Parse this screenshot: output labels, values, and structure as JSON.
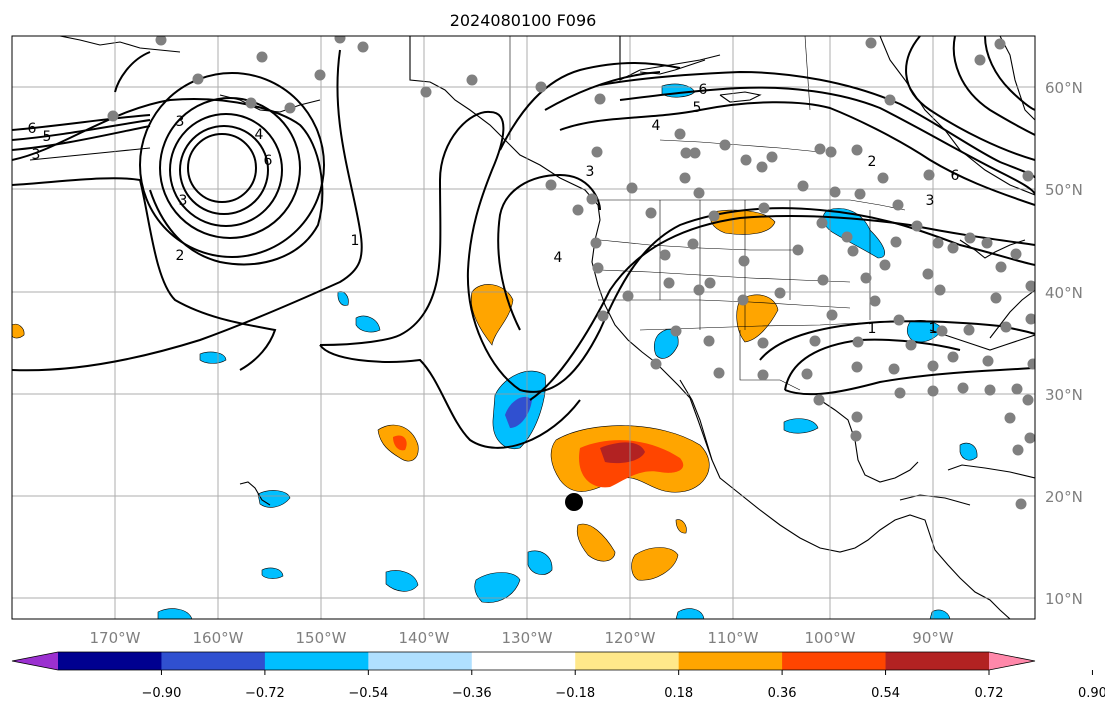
{
  "title": "2024080100 F096",
  "map": {
    "lon_labels": [
      "170°W",
      "160°W",
      "150°W",
      "140°W",
      "130°W",
      "120°W",
      "110°W",
      "100°W",
      "90°W"
    ],
    "lat_labels": [
      "60°N",
      "50°N",
      "40°N",
      "30°N",
      "20°N",
      "10°N"
    ],
    "contour_labels": [
      "6",
      "5",
      "3",
      "3",
      "4",
      "6",
      "3",
      "2",
      "1",
      "6",
      "5",
      "4",
      "3",
      "4",
      "2",
      "6",
      "3",
      "1",
      "1"
    ]
  },
  "colorbar": {
    "ticks": [
      "−0.90",
      "−0.72",
      "−0.54",
      "−0.36",
      "−0.18",
      "0.18",
      "0.36",
      "0.54",
      "0.72",
      "0.90"
    ],
    "colors": [
      "#9b30d0",
      "#000090",
      "#3050d0",
      "#00bfff",
      "#b0e0ff",
      "#ffffff",
      "#ffe88a",
      "#ffa500",
      "#ff4500",
      "#b22222",
      "#ff88aa"
    ]
  },
  "marker_colors": {
    "station": "#808080",
    "center": "#000000"
  }
}
